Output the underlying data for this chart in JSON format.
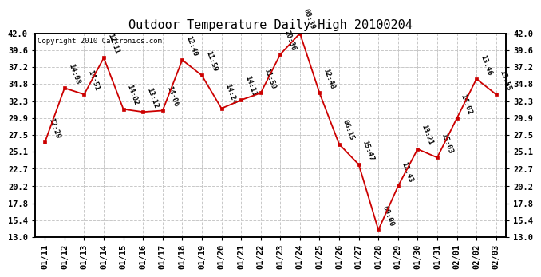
{
  "title": "Outdoor Temperature Daily High 20100204",
  "copyright": "Copyright 2010 Cartronics.com",
  "dates": [
    "01/11",
    "01/12",
    "01/13",
    "01/14",
    "01/15",
    "01/16",
    "01/17",
    "01/18",
    "01/19",
    "01/20",
    "01/21",
    "01/22",
    "01/23",
    "01/24",
    "01/25",
    "01/26",
    "01/27",
    "01/28",
    "01/29",
    "01/30",
    "01/31",
    "02/01",
    "02/02",
    "02/03"
  ],
  "values": [
    26.5,
    34.2,
    33.3,
    38.5,
    31.2,
    30.8,
    31.0,
    38.2,
    36.0,
    31.3,
    32.5,
    33.5,
    39.0,
    42.0,
    33.5,
    26.2,
    23.3,
    14.0,
    20.2,
    25.5,
    24.3,
    29.9,
    35.5,
    33.3
  ],
  "time_labels": [
    "12:29",
    "14:08",
    "14:51",
    "12:11",
    "14:02",
    "13:12",
    "14:06",
    "12:40",
    "11:59",
    "14:24",
    "14:11",
    "11:59",
    "20:36",
    "08:39",
    "12:48",
    "06:15",
    "15:47",
    "00:00",
    "12:43",
    "13:21",
    "15:03",
    "14:02",
    "13:46",
    "13:55"
  ],
  "ylim": [
    13.0,
    42.0
  ],
  "yticks": [
    13.0,
    15.4,
    17.8,
    20.2,
    22.7,
    25.1,
    27.5,
    29.9,
    32.3,
    34.8,
    37.2,
    39.6,
    42.0
  ],
  "line_color": "#cc0000",
  "marker_color": "#cc0000",
  "bg_color": "#ffffff",
  "grid_color": "#c8c8c8",
  "title_fontsize": 11,
  "label_fontsize": 6.5,
  "axis_fontsize": 7.5,
  "copyright_fontsize": 6.5
}
